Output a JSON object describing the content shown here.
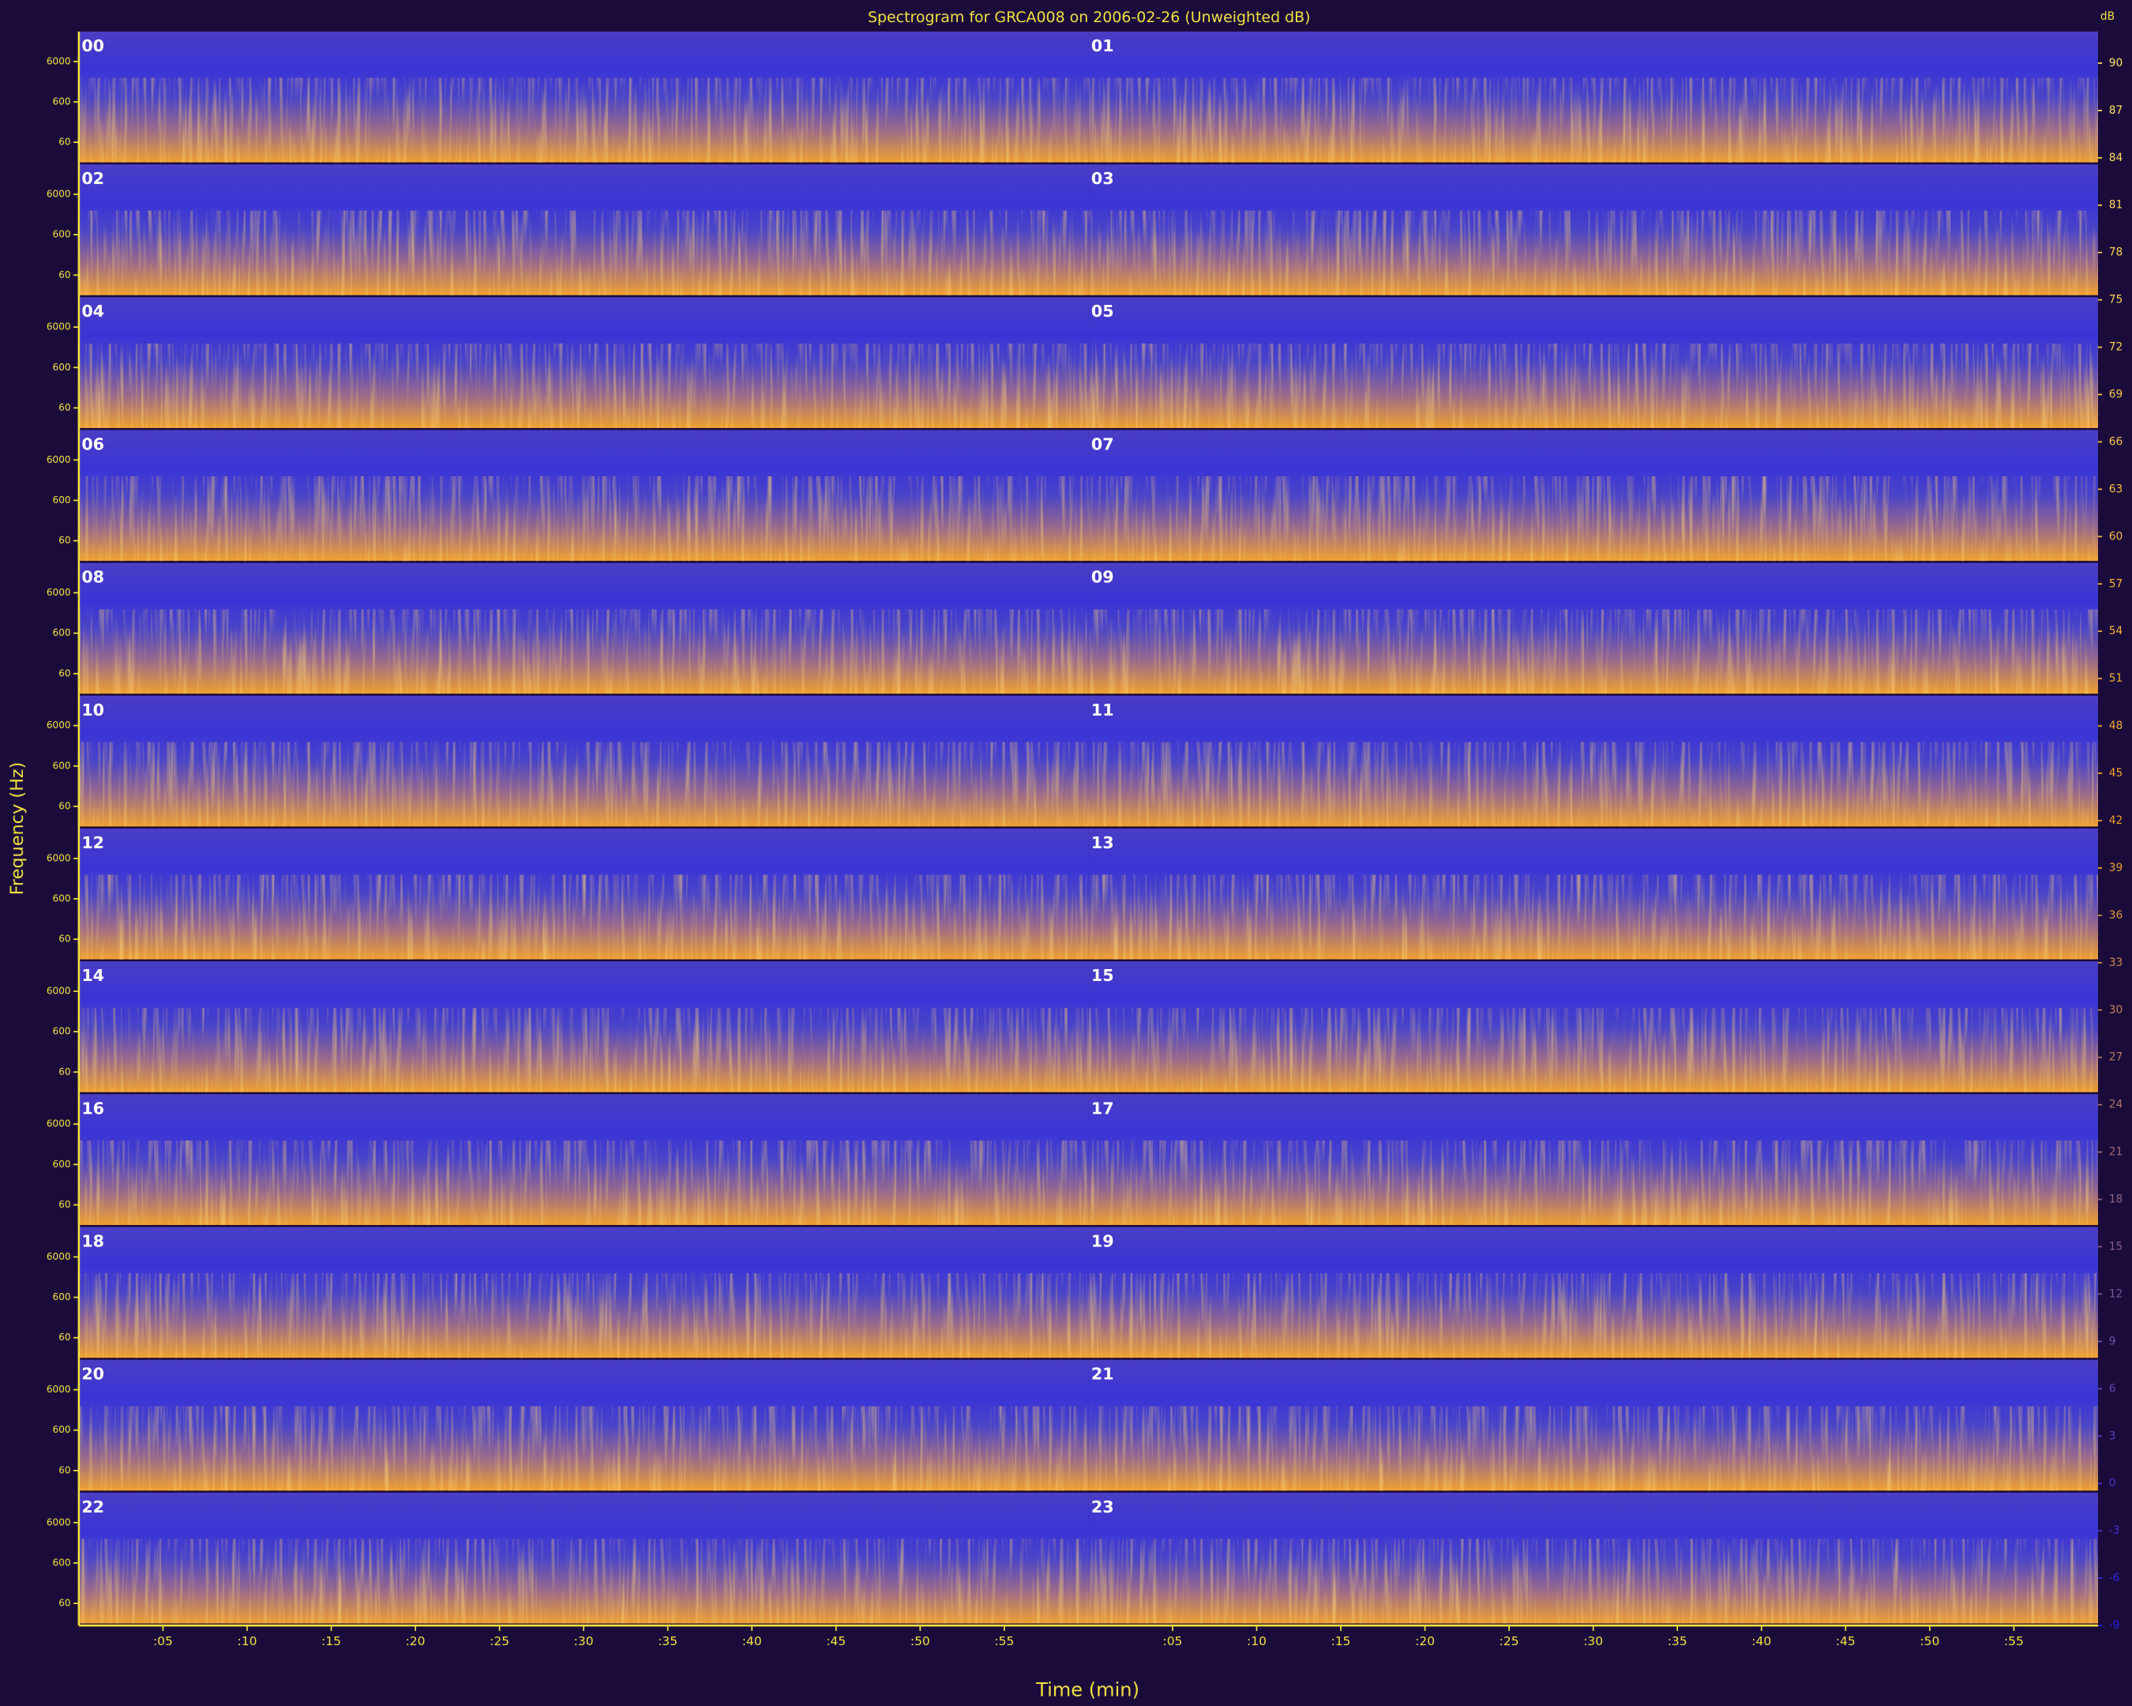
{
  "chart_data": {
    "type": "spectrogram",
    "title": "Spectrogram for GRCA008 on 2006-02-26 (Unweighted dB)",
    "xlabel": "Time (min)",
    "ylabel": "Frequency (Hz)",
    "hours": [
      "00",
      "01",
      "02",
      "03",
      "04",
      "05",
      "06",
      "07",
      "08",
      "09",
      "10",
      "11",
      "12",
      "13",
      "14",
      "15",
      "16",
      "17",
      "18",
      "19",
      "20",
      "21",
      "22",
      "23"
    ],
    "xlim": [
      0,
      60
    ],
    "xticks": [
      {
        "value": 5,
        "label": ":05"
      },
      {
        "value": 10,
        "label": ":10"
      },
      {
        "value": 15,
        "label": ":15"
      },
      {
        "value": 20,
        "label": ":20"
      },
      {
        "value": 25,
        "label": ":25"
      },
      {
        "value": 30,
        "label": ":30"
      },
      {
        "value": 35,
        "label": ":35"
      },
      {
        "value": 40,
        "label": ":40"
      },
      {
        "value": 45,
        "label": ":45"
      },
      {
        "value": 50,
        "label": ":50"
      },
      {
        "value": 55,
        "label": ":55"
      }
    ],
    "ylog": true,
    "ylim": [
      17,
      33000
    ],
    "yticks": [
      60,
      600,
      6000
    ],
    "zlabel": "dB",
    "zlim": [
      -9,
      92
    ],
    "zticks": [
      90,
      87,
      84,
      81,
      78,
      75,
      72,
      69,
      66,
      63,
      60,
      57,
      54,
      51,
      48,
      45,
      42,
      39,
      36,
      33,
      30,
      27,
      24,
      21,
      18,
      15,
      12,
      9,
      6,
      3,
      0,
      -3,
      -6,
      -9
    ],
    "colormap": [
      "#2222e6",
      "#f0a028",
      "#ffe860"
    ]
  }
}
